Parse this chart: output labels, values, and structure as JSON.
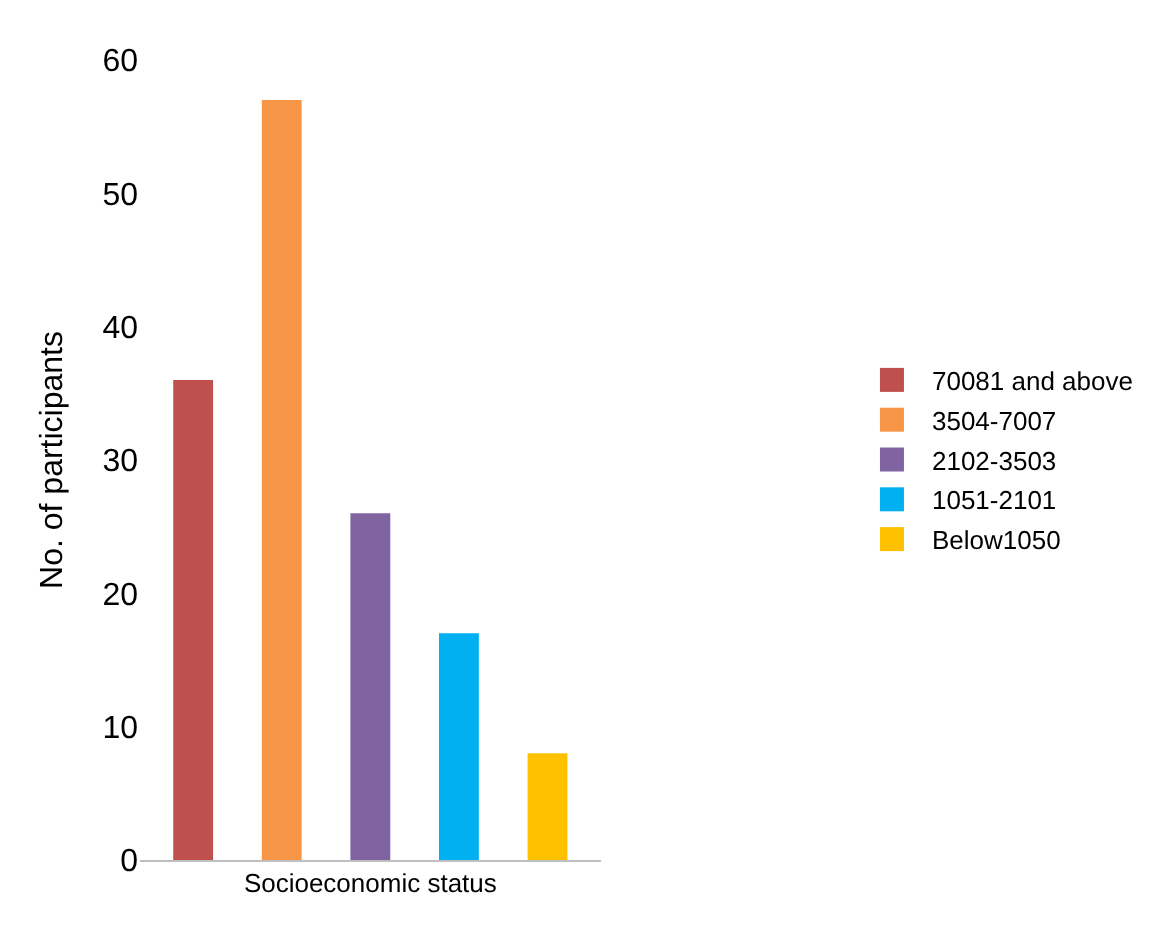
{
  "chart_data": {
    "type": "bar",
    "xlabel": "Socioeconomic status",
    "ylabel": "No. of participants",
    "categories": [
      null,
      null,
      null,
      null,
      null
    ],
    "series": [
      {
        "name": "70081 and above",
        "color": "#c0504d",
        "values": [
          36,
          null,
          null,
          null,
          null
        ]
      },
      {
        "name": "3504-7007",
        "color": "#f79646",
        "values": [
          null,
          57,
          null,
          null,
          null
        ]
      },
      {
        "name": "2102-3503",
        "color": "#8064a2",
        "values": [
          null,
          null,
          26,
          null,
          null
        ]
      },
      {
        "name": "1051-2101",
        "color": "#00b0f0",
        "values": [
          null,
          null,
          null,
          17,
          null
        ]
      },
      {
        "name": "Below1050",
        "color": "#ffc000",
        "values": [
          null,
          null,
          null,
          null,
          8
        ]
      }
    ],
    "ylim": [
      0,
      60
    ],
    "yticks": [
      0,
      10,
      20,
      30,
      40,
      50,
      60
    ],
    "grid": false,
    "legend": "right"
  }
}
